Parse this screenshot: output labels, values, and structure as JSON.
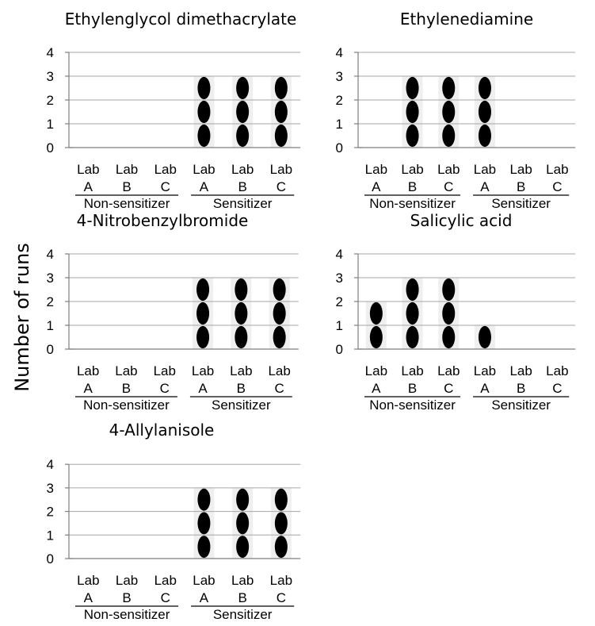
{
  "colors": {
    "mark": "#000000",
    "grid": "#a6a6a6",
    "axis": "#7f7f7f",
    "column": "#efefef"
  },
  "ylabel": "Number of runs",
  "chart_data": [
    {
      "type": "bar",
      "title": "Ethylenglycol dimethacrylate",
      "categories": [
        "Lab A",
        "Lab B",
        "Lab C",
        "Lab A",
        "Lab B",
        "Lab C"
      ],
      "cat_line1": [
        "Lab",
        "Lab",
        "Lab",
        "Lab",
        "Lab",
        "Lab"
      ],
      "cat_line2": [
        "A",
        "B",
        "C",
        "A",
        "B",
        "C"
      ],
      "groups": [
        {
          "name": "Non-sensitizer",
          "members": [
            0,
            1,
            2
          ]
        },
        {
          "name": "Sensitizer",
          "members": [
            3,
            4,
            5
          ]
        }
      ],
      "values": [
        0,
        0,
        0,
        3,
        3,
        3
      ],
      "ylim": [
        0,
        4
      ],
      "yticks": [
        "0",
        "1",
        "2",
        "3",
        "4"
      ],
      "grid": true
    },
    {
      "type": "bar",
      "title": "Ethylenediamine",
      "categories": [
        "Lab A",
        "Lab B",
        "Lab C",
        "Lab A",
        "Lab B",
        "Lab C"
      ],
      "cat_line1": [
        "Lab",
        "Lab",
        "Lab",
        "Lab",
        "Lab",
        "Lab"
      ],
      "cat_line2": [
        "A",
        "B",
        "C",
        "A",
        "B",
        "C"
      ],
      "groups": [
        {
          "name": "Non-sensitizer",
          "members": [
            0,
            1,
            2
          ]
        },
        {
          "name": "Sensitizer",
          "members": [
            3,
            4,
            5
          ]
        }
      ],
      "values": [
        0,
        3,
        3,
        3,
        0,
        0
      ],
      "ylim": [
        0,
        4
      ],
      "yticks": [
        "0",
        "1",
        "2",
        "3",
        "4"
      ],
      "grid": true
    },
    {
      "type": "bar",
      "title": "4-Nitrobenzylbromide",
      "categories": [
        "Lab A",
        "Lab B",
        "Lab C",
        "Lab A",
        "Lab B",
        "Lab C"
      ],
      "cat_line1": [
        "Lab",
        "Lab",
        "Lab",
        "Lab",
        "Lab",
        "Lab"
      ],
      "cat_line2": [
        "A",
        "B",
        "C",
        "A",
        "B",
        "C"
      ],
      "groups": [
        {
          "name": "Non-sensitizer",
          "members": [
            0,
            1,
            2
          ]
        },
        {
          "name": "Sensitizer",
          "members": [
            3,
            4,
            5
          ]
        }
      ],
      "values": [
        0,
        0,
        0,
        3,
        3,
        3
      ],
      "ylim": [
        0,
        4
      ],
      "yticks": [
        "0",
        "1",
        "2",
        "3",
        "4"
      ],
      "grid": true
    },
    {
      "type": "bar",
      "title": "Salicylic acid",
      "categories": [
        "Lab A",
        "Lab B",
        "Lab C",
        "Lab A",
        "Lab B",
        "Lab C"
      ],
      "cat_line1": [
        "Lab",
        "Lab",
        "Lab",
        "Lab",
        "Lab",
        "Lab"
      ],
      "cat_line2": [
        "A",
        "B",
        "C",
        "A",
        "B",
        "C"
      ],
      "groups": [
        {
          "name": "Non-sensitizer",
          "members": [
            0,
            1,
            2
          ]
        },
        {
          "name": "Sensitizer",
          "members": [
            3,
            4,
            5
          ]
        }
      ],
      "values": [
        2,
        3,
        3,
        1,
        0,
        0
      ],
      "ylim": [
        0,
        4
      ],
      "yticks": [
        "0",
        "1",
        "2",
        "3",
        "4"
      ],
      "grid": true
    },
    {
      "type": "bar",
      "title": "4-Allylanisole",
      "categories": [
        "Lab A",
        "Lab B",
        "Lab C",
        "Lab A",
        "Lab B",
        "Lab C"
      ],
      "cat_line1": [
        "Lab",
        "Lab",
        "Lab",
        "Lab",
        "Lab",
        "Lab"
      ],
      "cat_line2": [
        "A",
        "B",
        "C",
        "A",
        "B",
        "C"
      ],
      "groups": [
        {
          "name": "Non-sensitizer",
          "members": [
            0,
            1,
            2
          ]
        },
        {
          "name": "Sensitizer",
          "members": [
            3,
            4,
            5
          ]
        }
      ],
      "values": [
        0,
        0,
        0,
        3,
        3,
        3
      ],
      "ylim": [
        0,
        4
      ],
      "yticks": [
        "0",
        "1",
        "2",
        "3",
        "4"
      ],
      "grid": true
    }
  ]
}
